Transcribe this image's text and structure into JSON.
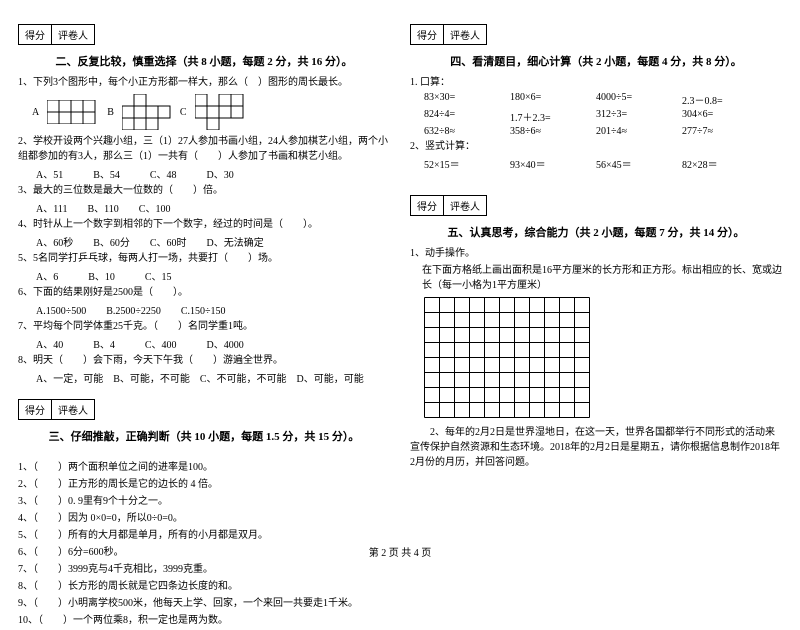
{
  "scorebox": {
    "label_score": "得分",
    "label_grader": "评卷人"
  },
  "section2": {
    "title": "二、反复比较，慎重选择（共 8 小题，每题 2 分，共 16 分）。",
    "q1": "1、下列3个图形中，每个小正方形都一样大，那么（　）图形的周长最长。",
    "shape_labels": [
      "A",
      "B",
      "C"
    ],
    "q2": "2、学校开设两个兴趣小组，三（1）27人参加书画小组，24人参加棋艺小组，两个小组都参加的有3人，那么三（1）一共有（　　）人参加了书画和棋艺小组。",
    "q2_opts": "A、51　　　B、54　　　C、48　　　D、30",
    "q3": "3、最大的三位数是最大一位数的（　　）倍。",
    "q3_opts": "A、111　　B、110　　C、100",
    "q4": "4、时针从上一个数字到相邻的下一个数字，经过的时间是（　　）。",
    "q4_opts": "A、60秒　　B、60分　　C、60时　　D、无法确定",
    "q5": "5、5名同学打乒乓球，每两人打一场，共要打（　　）场。",
    "q5_opts": "A、6　　　B、10　　　C、15",
    "q6": "6、下面的结果刚好是2500是（　　）。",
    "q6_opts": "A.1500÷500　　B.2500÷2250　　C.150÷150",
    "q7": "7、平均每个同学体重25千克。（　　）名同学重1吨。",
    "q7_opts": "A、40　　　B、4　　　C、400　　　D、4000",
    "q8": "8、明天（　　）会下雨，今天下午我（　　）游遍全世界。",
    "q8_opts": "A、一定，可能　B、可能，不可能　C、不可能，不可能　D、可能，可能"
  },
  "section3": {
    "title": "三、仔细推敲，正确判断（共 10 小题，每题 1.5 分，共 15 分）。",
    "items": [
      "1、（　　）两个面积单位之间的进率是100。",
      "2、（　　）正方形的周长是它的边长的 4 倍。",
      "3、（　　）0. 9里有9个十分之一。",
      "4、（　　）因为 0×0=0，所以0÷0=0。",
      "5、（　　）所有的大月都是单月，所有的小月都是双月。",
      "6、（　　）6分=600秒。",
      "7、（　　）3999克与4千克相比，3999克重。",
      "8、（　　）长方形的周长就是它四条边长度的和。",
      "9、（　　）小明离学校500米，他每天上学、回家，一个来回一共要走1千米。",
      "10、（　　）一个两位乘8，积一定也是两为数。"
    ]
  },
  "section4": {
    "title": "四、看清题目，细心计算（共 2 小题，每题 4 分，共 8 分）。",
    "sub1": "1. 口算：",
    "rows1": [
      [
        "83×30=",
        "180×6=",
        "4000÷5=",
        "2.3－0.8="
      ],
      [
        "824÷4=",
        "1.7＋2.3=",
        "312÷3=",
        "304×6="
      ],
      [
        "632÷8≈",
        "358÷6≈",
        "201÷4≈",
        "277÷7≈"
      ]
    ],
    "sub2": "2、竖式计算：",
    "rows2": [
      [
        "52×15＝",
        "93×40＝",
        "56×45＝",
        "82×28＝"
      ]
    ]
  },
  "section5": {
    "title": "五、认真思考，综合能力（共 2 小题，每题 7 分，共 14 分）。",
    "q1": "1、动手操作。",
    "q1_desc": "在下面方格纸上画出面积是16平方厘米的长方形和正方形。标出相应的长、宽或边长（每一小格为1平方厘米）",
    "grid": {
      "rows": 8,
      "cols": 11,
      "cell": 15,
      "stroke": "#000000"
    },
    "q2": "　　2、每年的2月2日是世界湿地日，在这一天，世界各国都举行不同形式的活动来宣传保护自然资源和生态环境。2018年的2月2日是星期五，请你根据信息制作2018年2月份的月历，并回答问题。"
  },
  "footer": "第 2 页 共 4 页"
}
